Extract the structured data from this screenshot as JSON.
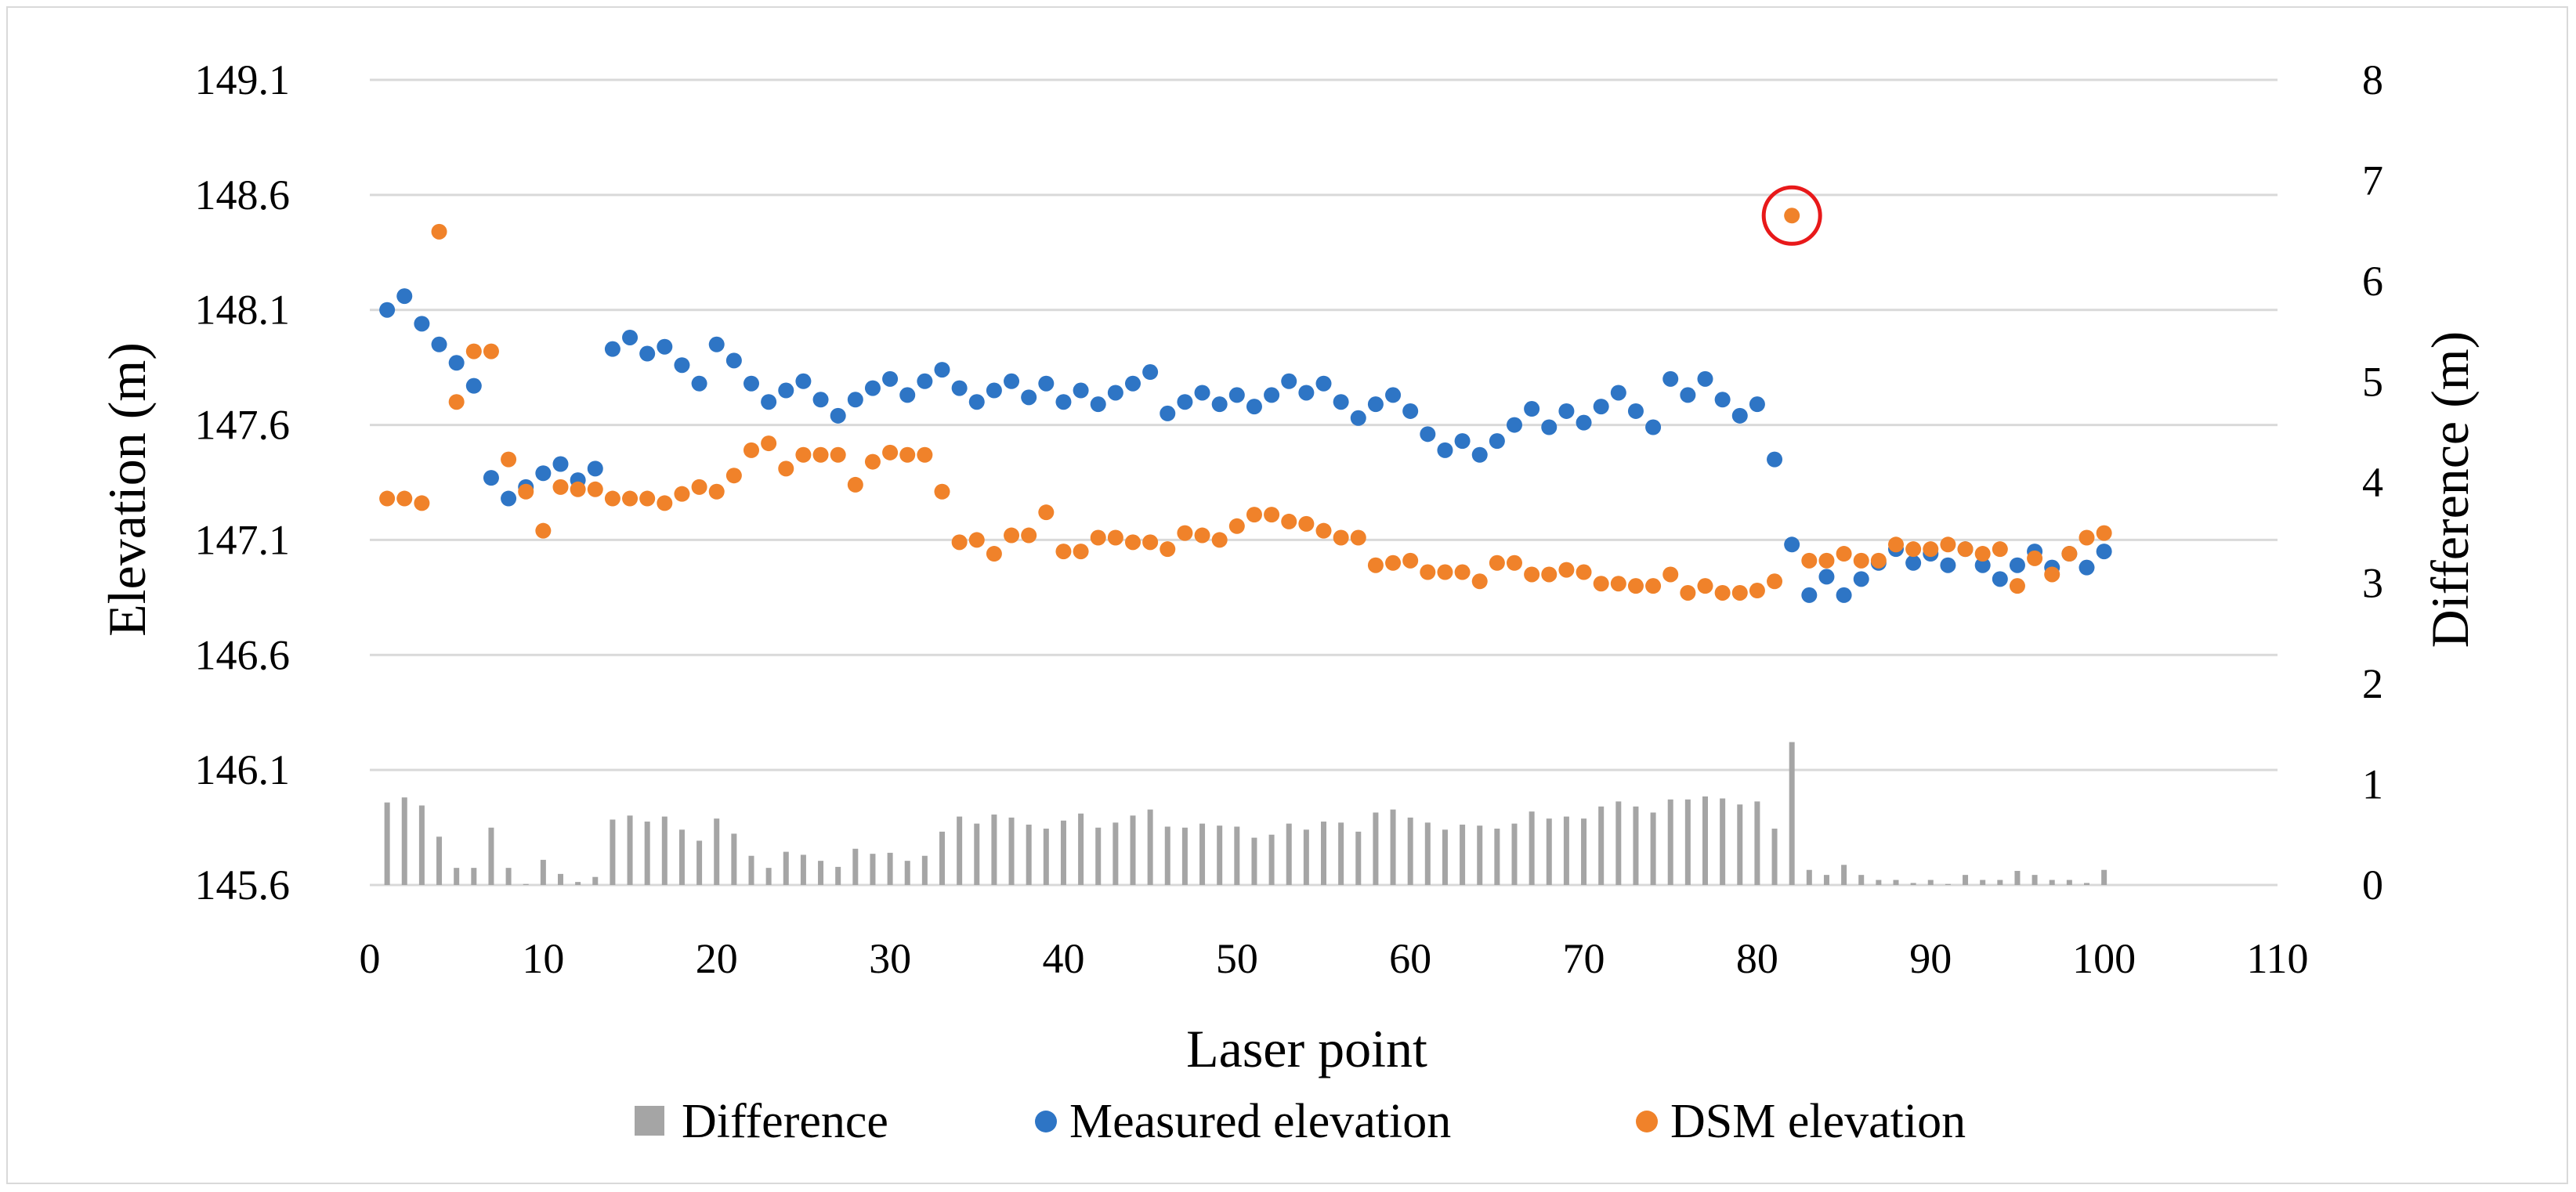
{
  "chart_data": {
    "type": "scatter",
    "xlabel": "Laser point",
    "ylabel": "Elevation (m)",
    "y2label": "Difference (m)",
    "xlim": [
      0,
      110
    ],
    "xticks": [
      "0",
      "10",
      "20",
      "30",
      "40",
      "50",
      "60",
      "70",
      "80",
      "90",
      "100",
      "110"
    ],
    "ylim": [
      145.6,
      149.1
    ],
    "yticks": [
      "145.6",
      "146.1",
      "146.6",
      "147.1",
      "147.6",
      "148.1",
      "148.6",
      "149.1"
    ],
    "y2lim": [
      0,
      8
    ],
    "y2ticks": [
      "0",
      "1",
      "2",
      "3",
      "4",
      "5",
      "6",
      "7",
      "8"
    ],
    "grid": true,
    "legend_position": "bottom",
    "colors": {
      "difference": "#a5a5a5",
      "measured": "#2e75c5",
      "dsm": "#f0822a",
      "highlight": "#e8191a"
    },
    "highlighted_point": {
      "series": "DSM elevation",
      "x": 82,
      "y": 148.51
    },
    "series": [
      {
        "name": "Difference",
        "kind": "bar",
        "axis": "secondary",
        "x": [
          1,
          2,
          3,
          4,
          5,
          6,
          7,
          8,
          9,
          10,
          11,
          12,
          13,
          14,
          15,
          16,
          17,
          18,
          19,
          20,
          21,
          22,
          23,
          24,
          25,
          26,
          27,
          28,
          29,
          30,
          31,
          32,
          33,
          34,
          35,
          36,
          37,
          38,
          39,
          40,
          41,
          42,
          43,
          44,
          45,
          46,
          47,
          48,
          49,
          50,
          51,
          52,
          53,
          54,
          55,
          56,
          57,
          58,
          59,
          60,
          61,
          62,
          63,
          64,
          65,
          66,
          67,
          68,
          69,
          70,
          71,
          72,
          73,
          74,
          75,
          76,
          77,
          78,
          79,
          80,
          81,
          82,
          83,
          84,
          85,
          86,
          87,
          88,
          89,
          90,
          91,
          92,
          93,
          94,
          95,
          96,
          97,
          98,
          99,
          100
        ],
        "values": [
          0.82,
          0.87,
          0.79,
          0.48,
          0.17,
          0.17,
          0.57,
          0.17,
          0.01,
          0.25,
          0.11,
          0.03,
          0.08,
          0.65,
          0.69,
          0.63,
          0.68,
          0.55,
          0.44,
          0.66,
          0.51,
          0.29,
          0.17,
          0.33,
          0.3,
          0.24,
          0.18,
          0.36,
          0.31,
          0.32,
          0.24,
          0.29,
          0.53,
          0.68,
          0.61,
          0.7,
          0.67,
          0.6,
          0.56,
          0.64,
          0.71,
          0.57,
          0.62,
          0.69,
          0.75,
          0.58,
          0.57,
          0.61,
          0.59,
          0.58,
          0.47,
          0.5,
          0.61,
          0.55,
          0.63,
          0.62,
          0.53,
          0.72,
          0.75,
          0.67,
          0.62,
          0.55,
          0.6,
          0.59,
          0.56,
          0.61,
          0.73,
          0.66,
          0.68,
          0.66,
          0.78,
          0.83,
          0.78,
          0.72,
          0.85,
          0.85,
          0.88,
          0.86,
          0.8,
          0.83,
          0.56,
          1.42,
          0.15,
          0.1,
          0.2,
          0.1,
          0.05,
          0.05,
          0.02,
          0.05,
          0.01,
          0.1,
          0.05,
          0.05,
          0.14,
          0.1,
          0.05,
          0.05,
          0.02,
          0.15
        ]
      },
      {
        "name": "Measured elevation",
        "kind": "scatter",
        "axis": "primary",
        "x": [
          1,
          2,
          3,
          4,
          5,
          6,
          7,
          8,
          9,
          10,
          11,
          12,
          13,
          14,
          15,
          16,
          17,
          18,
          19,
          20,
          21,
          22,
          23,
          24,
          25,
          26,
          27,
          28,
          29,
          30,
          31,
          32,
          33,
          34,
          35,
          36,
          37,
          38,
          39,
          40,
          41,
          42,
          43,
          44,
          45,
          46,
          47,
          48,
          49,
          50,
          51,
          52,
          53,
          54,
          55,
          56,
          57,
          58,
          59,
          60,
          61,
          62,
          63,
          64,
          65,
          66,
          67,
          68,
          69,
          70,
          71,
          72,
          73,
          74,
          75,
          76,
          77,
          78,
          79,
          80,
          81,
          82,
          83,
          84,
          85,
          86,
          87,
          88,
          89,
          90,
          91,
          92,
          93,
          94,
          95,
          96,
          97,
          98,
          99,
          100
        ],
        "values": [
          148.1,
          148.16,
          148.04,
          147.95,
          147.87,
          147.77,
          147.37,
          147.28,
          147.33,
          147.39,
          147.43,
          147.36,
          147.41,
          147.93,
          147.98,
          147.91,
          147.94,
          147.86,
          147.78,
          147.95,
          147.88,
          147.78,
          147.7,
          147.75,
          147.79,
          147.71,
          147.64,
          147.71,
          147.76,
          147.8,
          147.73,
          147.79,
          147.84,
          147.76,
          147.7,
          147.75,
          147.79,
          147.72,
          147.78,
          147.7,
          147.75,
          147.69,
          147.74,
          147.78,
          147.83,
          147.65,
          147.7,
          147.74,
          147.69,
          147.73,
          147.68,
          147.73,
          147.79,
          147.74,
          147.78,
          147.7,
          147.63,
          147.69,
          147.73,
          147.66,
          147.56,
          147.49,
          147.53,
          147.47,
          147.53,
          147.6,
          147.67,
          147.59,
          147.66,
          147.61,
          147.68,
          147.74,
          147.66,
          147.59,
          147.8,
          147.73,
          147.8,
          147.71,
          147.64,
          147.69,
          147.45,
          147.08,
          146.86,
          146.94,
          146.86,
          146.93,
          147.0,
          147.06,
          147.0,
          147.04,
          146.99,
          147.06,
          146.99,
          146.93,
          146.99,
          147.05,
          146.98,
          147.04,
          146.98,
          147.05
        ]
      },
      {
        "name": "DSM elevation",
        "kind": "scatter",
        "axis": "primary",
        "x": [
          1,
          2,
          3,
          4,
          5,
          6,
          7,
          8,
          9,
          10,
          11,
          12,
          13,
          14,
          15,
          16,
          17,
          18,
          19,
          20,
          21,
          22,
          23,
          24,
          25,
          26,
          27,
          28,
          29,
          30,
          31,
          32,
          33,
          34,
          35,
          36,
          37,
          38,
          39,
          40,
          41,
          42,
          43,
          44,
          45,
          46,
          47,
          48,
          49,
          50,
          51,
          52,
          53,
          54,
          55,
          56,
          57,
          58,
          59,
          60,
          61,
          62,
          63,
          64,
          65,
          66,
          67,
          68,
          69,
          70,
          71,
          72,
          73,
          74,
          75,
          76,
          77,
          78,
          79,
          80,
          81,
          82,
          83,
          84,
          85,
          86,
          87,
          88,
          89,
          90,
          91,
          92,
          93,
          94,
          95,
          96,
          97,
          98,
          99,
          100
        ],
        "values": [
          147.28,
          147.28,
          147.26,
          148.44,
          147.7,
          147.92,
          147.92,
          147.45,
          147.31,
          147.14,
          147.33,
          147.32,
          147.32,
          147.28,
          147.28,
          147.28,
          147.26,
          147.3,
          147.33,
          147.31,
          147.38,
          147.49,
          147.52,
          147.41,
          147.47,
          147.47,
          147.47,
          147.34,
          147.44,
          147.48,
          147.47,
          147.47,
          147.31,
          147.09,
          147.1,
          147.04,
          147.12,
          147.12,
          147.22,
          147.05,
          147.05,
          147.11,
          147.11,
          147.09,
          147.09,
          147.06,
          147.13,
          147.12,
          147.1,
          147.16,
          147.21,
          147.21,
          147.18,
          147.17,
          147.14,
          147.11,
          147.11,
          146.99,
          147.0,
          147.01,
          146.96,
          146.96,
          146.96,
          146.92,
          147.0,
          147.0,
          146.95,
          146.95,
          146.97,
          146.96,
          146.91,
          146.91,
          146.9,
          146.9,
          146.95,
          146.87,
          146.9,
          146.87,
          146.87,
          146.88,
          146.92,
          148.51,
          147.01,
          147.01,
          147.04,
          147.01,
          147.01,
          147.08,
          147.06,
          147.06,
          147.08,
          147.06,
          147.04,
          147.06,
          146.9,
          147.02,
          146.95,
          147.04,
          147.11,
          147.13
        ]
      }
    ],
    "legend": [
      {
        "label": "Difference",
        "marker": "square"
      },
      {
        "label": "Measured elevation",
        "marker": "circle"
      },
      {
        "label": "DSM elevation",
        "marker": "circle"
      }
    ]
  }
}
